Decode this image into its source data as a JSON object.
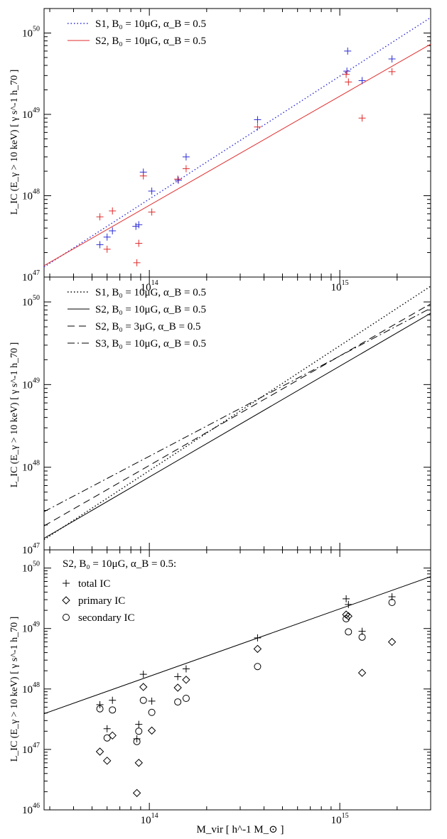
{
  "figure": {
    "y_axis_label": "L_IC (E_γ > 10 keV) [ γ s^-1 h_70 ]",
    "x_axis_label": "M_vir [ h^-1 M_⊙ ]"
  },
  "colors": {
    "blue": "#2b2bd6",
    "red": "#e02b2b",
    "black": "#000000"
  },
  "chart_data": [
    {
      "type": "scatter",
      "panel": "top",
      "xscale": "log",
      "yscale": "log",
      "xlim": [
        28000000000000.0,
        3000000000000000.0
      ],
      "ylim": [
        1e+47,
        2e+50
      ],
      "x_ticks": [
        {
          "base": "10",
          "exp": "14",
          "value": 100000000000000.0
        },
        {
          "base": "10",
          "exp": "15",
          "value": 1000000000000000.0
        }
      ],
      "y_ticks": [
        {
          "base": "10",
          "exp": "47",
          "value": 1e+47
        },
        {
          "base": "10",
          "exp": "48",
          "value": 1e+48
        },
        {
          "base": "10",
          "exp": "49",
          "value": 1e+49
        },
        {
          "base": "10",
          "exp": "50",
          "value": 1e+50
        }
      ],
      "legend": [
        {
          "label": "S1,  B₀ = 10μG, α_B = 0.5",
          "style": "dotted",
          "color": "#2b2bd6"
        },
        {
          "label": "S2,  B₀ = 10μG, α_B = 0.5",
          "style": "solid",
          "color": "#e02b2b"
        }
      ],
      "lines": [
        {
          "name": "S1",
          "style": "dotted",
          "color": "#2b2bd6",
          "x": [
            28000000000000.0,
            3000000000000000.0
          ],
          "y": [
            1.33e+47,
            1.55e+50
          ]
        },
        {
          "name": "S2",
          "style": "solid",
          "color": "#e02b2b",
          "x": [
            28000000000000.0,
            3000000000000000.0
          ],
          "y": [
            1.38e+47,
            7.3e+49
          ]
        }
      ],
      "series": [
        {
          "name": "S1",
          "marker": "plus",
          "color": "#2b2bd6",
          "x": [
            55000000000000.0,
            60000000000000.0,
            64000000000000.0,
            85000000000000.0,
            88000000000000.0,
            93000000000000.0,
            103000000000000.0,
            142000000000000.0,
            156000000000000.0,
            370000000000000.0,
            1090000000000000.0,
            1100000000000000.0,
            1310000000000000.0,
            1880000000000000.0
          ],
          "y": [
            2.5e+47,
            3.1e+47,
            3.7e+47,
            4.2e+47,
            4.4e+47,
            1.95e+48,
            1.14e+48,
            1.55e+48,
            3e+48,
            8.6e+48,
            3.4e+49,
            6e+49,
            2.6e+49,
            4.8e+49
          ]
        },
        {
          "name": "S2",
          "marker": "plus",
          "color": "#e02b2b",
          "x": [
            55000000000000.0,
            60000000000000.0,
            64000000000000.0,
            86000000000000.0,
            88000000000000.0,
            93000000000000.0,
            103000000000000.0,
            141000000000000.0,
            156000000000000.0,
            370000000000000.0,
            1080000000000000.0,
            1110000000000000.0,
            1310000000000000.0,
            1880000000000000.0
          ],
          "y": [
            5.5e+47,
            2.2e+47,
            6.5e+47,
            1.5e+47,
            2.6e+47,
            1.75e+48,
            6.3e+47,
            1.6e+48,
            2.15e+48,
            7e+48,
            3.1e+49,
            2.5e+49,
            9e+48,
            3.35e+49
          ]
        }
      ]
    },
    {
      "type": "line",
      "panel": "middle",
      "xscale": "log",
      "yscale": "log",
      "xlim": [
        28000000000000.0,
        3000000000000000.0
      ],
      "ylim": [
        1e+47,
        2e+50
      ],
      "x_ticks": [],
      "y_ticks": [
        {
          "base": "10",
          "exp": "47",
          "value": 1e+47
        },
        {
          "base": "10",
          "exp": "48",
          "value": 1e+48
        },
        {
          "base": "10",
          "exp": "49",
          "value": 1e+49
        },
        {
          "base": "10",
          "exp": "50",
          "value": 1e+50
        }
      ],
      "legend": [
        {
          "label": "S1,  B₀ = 10μG, α_B = 0.5",
          "style": "dotted"
        },
        {
          "label": "S2,  B₀ = 10μG, α_B = 0.5",
          "style": "solid"
        },
        {
          "label": "S2,  B₀ =   3μG, α_B = 0.5",
          "style": "dashed"
        },
        {
          "label": "S3,  B₀ = 10μG, α_B = 0.5",
          "style": "dashdot"
        }
      ],
      "lines": [
        {
          "name": "S1",
          "style": "dotted",
          "x": [
            28000000000000.0,
            3000000000000000.0
          ],
          "y": [
            1.33e+47,
            1.55e+50
          ]
        },
        {
          "name": "S2",
          "style": "solid",
          "x": [
            28000000000000.0,
            3000000000000000.0
          ],
          "y": [
            1.38e+47,
            7.3e+49
          ]
        },
        {
          "name": "S2",
          "style": "dashed",
          "x": [
            28000000000000.0,
            3000000000000000.0
          ],
          "y": [
            1.95e+47,
            9.5e+49
          ]
        },
        {
          "name": "S3",
          "style": "dashdot",
          "x": [
            28000000000000.0,
            3000000000000000.0
          ],
          "y": [
            2.9e+47,
            8.4e+49
          ]
        }
      ]
    },
    {
      "type": "scatter",
      "panel": "bottom",
      "xscale": "log",
      "yscale": "log",
      "xlim": [
        28000000000000.0,
        3000000000000000.0
      ],
      "ylim": [
        1e+46,
        2e+50
      ],
      "x_ticks": [
        {
          "base": "10",
          "exp": "14",
          "value": 100000000000000.0
        },
        {
          "base": "10",
          "exp": "15",
          "value": 1000000000000000.0
        }
      ],
      "y_ticks": [
        {
          "base": "10",
          "exp": "46",
          "value": 1e+46
        },
        {
          "base": "10",
          "exp": "47",
          "value": 1e+47
        },
        {
          "base": "10",
          "exp": "48",
          "value": 1e+48
        },
        {
          "base": "10",
          "exp": "49",
          "value": 1e+49
        },
        {
          "base": "10",
          "exp": "50",
          "value": 1e+50
        }
      ],
      "title": "S2,  B₀ = 10μG, α_B = 0.5:",
      "legend": [
        {
          "label": "total IC",
          "marker": "plus"
        },
        {
          "label": "primary IC",
          "marker": "diamond"
        },
        {
          "label": "secondary IC",
          "marker": "circle"
        }
      ],
      "lines": [
        {
          "name": "S2",
          "style": "solid",
          "x": [
            28000000000000.0,
            3000000000000000.0
          ],
          "y": [
            3.9e+47,
            7.2e+49
          ]
        }
      ],
      "series": [
        {
          "name": "total IC",
          "marker": "plus",
          "x": [
            55000000000000.0,
            60000000000000.0,
            64000000000000.0,
            86000000000000.0,
            88000000000000.0,
            93000000000000.0,
            103000000000000.0,
            141000000000000.0,
            156000000000000.0,
            370000000000000.0,
            1080000000000000.0,
            1110000000000000.0,
            1310000000000000.0,
            1880000000000000.0
          ],
          "y": [
            5.5e+47,
            2.2e+47,
            6.5e+47,
            1.5e+47,
            2.6e+47,
            1.75e+48,
            6.3e+47,
            1.6e+48,
            2.15e+48,
            7e+48,
            3.1e+49,
            2.5e+49,
            9e+48,
            3.35e+49
          ]
        },
        {
          "name": "primary IC",
          "marker": "diamond",
          "x": [
            55000000000000.0,
            60000000000000.0,
            64000000000000.0,
            86000000000000.0,
            88000000000000.0,
            93000000000000.0,
            103000000000000.0,
            141000000000000.0,
            156000000000000.0,
            370000000000000.0,
            1080000000000000.0,
            1110000000000000.0,
            1310000000000000.0,
            1880000000000000.0
          ],
          "y": [
            9.2e+46,
            6.5e+46,
            1.7e+47,
            1.9e+46,
            6e+46,
            1.08e+48,
            2.05e+47,
            1.05e+48,
            1.42e+48,
            4.6e+48,
            1.7e+49,
            1.6e+49,
            1.85e+48,
            6e+48
          ]
        },
        {
          "name": "secondary IC",
          "marker": "circle",
          "x": [
            55000000000000.0,
            60000000000000.0,
            64000000000000.0,
            86000000000000.0,
            88000000000000.0,
            93000000000000.0,
            103000000000000.0,
            141000000000000.0,
            156000000000000.0,
            370000000000000.0,
            1080000000000000.0,
            1110000000000000.0,
            1310000000000000.0,
            1880000000000000.0
          ],
          "y": [
            4.7e+47,
            1.55e+47,
            4.5e+47,
            1.35e+47,
            2e+47,
            6.5e+47,
            4.1e+47,
            6.1e+47,
            7e+47,
            2.35e+48,
            1.45e+49,
            8.8e+48,
            7.2e+48,
            2.7e+49
          ]
        }
      ]
    }
  ]
}
